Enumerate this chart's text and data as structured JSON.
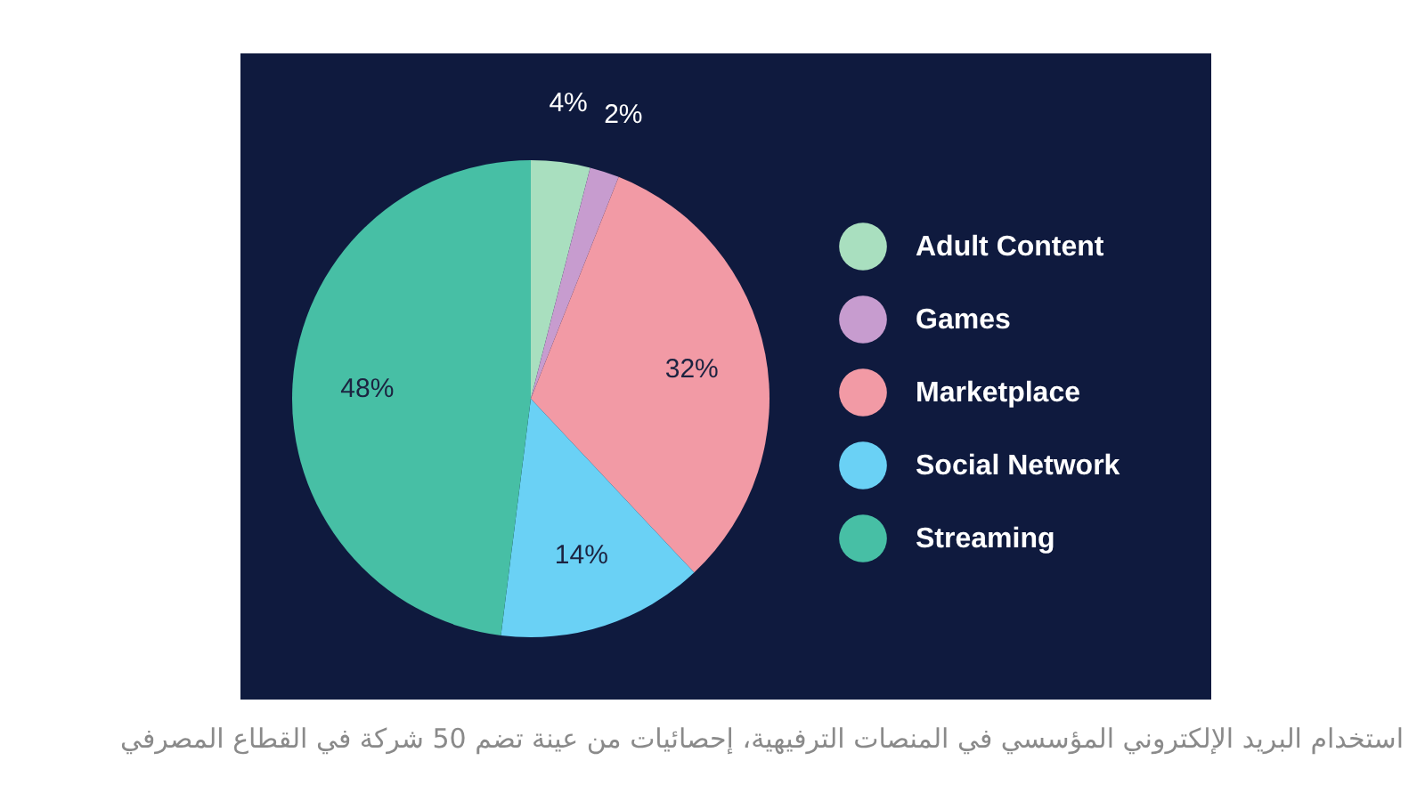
{
  "chart_data": {
    "type": "pie",
    "categories": [
      "Adult Content",
      "Games",
      "Marketplace",
      "Social Network",
      "Streaming"
    ],
    "values": [
      4,
      2,
      32,
      14,
      48
    ],
    "value_labels": [
      "4%",
      "2%",
      "32%",
      "14%",
      "48%"
    ],
    "colors": [
      "#a9dfbf",
      "#c79ccf",
      "#f29aa5",
      "#6ad1f5",
      "#47bfa5"
    ],
    "legend": "right",
    "annotations": [
      "استخدام البريد الإلكتروني المؤسسي في المنصات الترفيهية، إحصائيات من عينة تضم 50 شركة في القطاع المصرفي"
    ]
  }
}
